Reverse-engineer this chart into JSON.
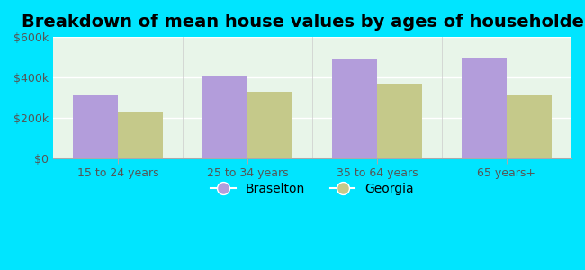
{
  "title": "Breakdown of mean house values by ages of householders",
  "categories": [
    "15 to 24 years",
    "25 to 34 years",
    "35 to 64 years",
    "65 years+"
  ],
  "braselton_values": [
    310000,
    405000,
    490000,
    500000
  ],
  "georgia_values": [
    225000,
    330000,
    370000,
    310000
  ],
  "braselton_color": "#b39ddb",
  "georgia_color": "#c5c98a",
  "background_color": "#00e5ff",
  "plot_bg_color": "#e8f5e9",
  "ylim": [
    0,
    600000
  ],
  "yticks": [
    0,
    200000,
    400000,
    600000
  ],
  "ytick_labels": [
    "$0",
    "$200k",
    "$400k",
    "$600k"
  ],
  "bar_width": 0.35,
  "legend_labels": [
    "Braselton",
    "Georgia"
  ],
  "title_fontsize": 14,
  "tick_fontsize": 9,
  "legend_fontsize": 10
}
